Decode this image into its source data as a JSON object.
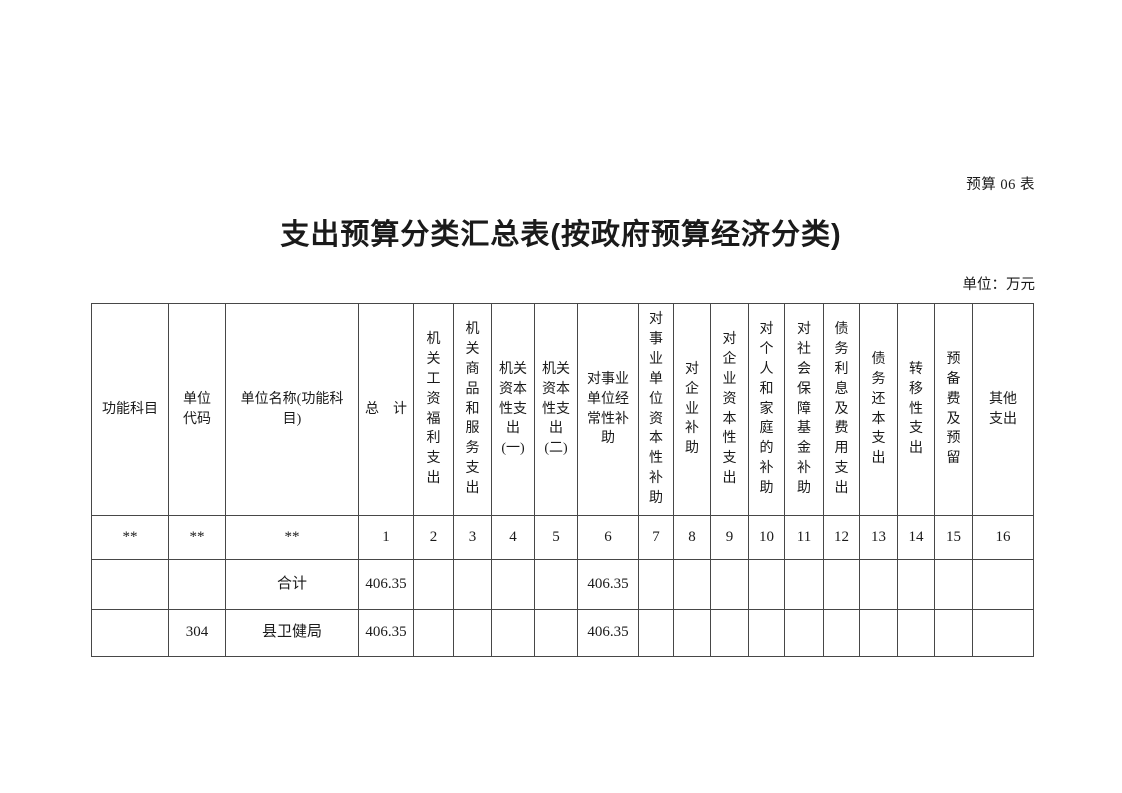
{
  "page": {
    "doc_label": "预算 06 表",
    "title": "支出预算分类汇总表(按政府预算经济分类)",
    "unit_note": "单位：万元"
  },
  "table": {
    "headers": [
      "功能科目",
      "单位\n代码",
      "单位名称(功能科\n目)",
      "总　计",
      "机\n关\n工\n资\n福\n利\n支\n出",
      "机\n关\n商\n品\n和\n服\n务\n支\n出",
      "机关\n资本\n性支\n出\n(一)",
      "机关\n资本\n性支\n出\n(二)",
      "对事业\n单位经\n常性补\n助",
      "对\n事\n业\n单\n位\n资\n本\n性\n补\n助",
      "对\n企\n业\n补\n助",
      "对\n企\n业\n资\n本\n性\n支\n出",
      "对\n个\n人\n和\n家\n庭\n的\n补\n助",
      "对\n社\n会\n保\n障\n基\n金\n补\n助",
      "债\n务\n利\n息\n及\n费\n用\n支\n出",
      "债\n务\n还\n本\n支\n出",
      "转\n移\n性\n支\n出",
      "预\n备\n费\n及\n预\n留",
      "其他\n支出"
    ],
    "number_row": [
      "**",
      "**",
      "**",
      "1",
      "2",
      "3",
      "4",
      "5",
      "6",
      "7",
      "8",
      "9",
      "10",
      "11",
      "12",
      "13",
      "14",
      "15",
      "16"
    ],
    "rows": [
      {
        "cells": [
          "",
          "",
          "合计",
          "406.35",
          "",
          "",
          "",
          "",
          "406.35",
          "",
          "",
          "",
          "",
          "",
          "",
          "",
          "",
          "",
          ""
        ]
      },
      {
        "cells": [
          "",
          "304",
          "县卫健局",
          "406.35",
          "",
          "",
          "",
          "",
          "406.35",
          "",
          "",
          "",
          "",
          "",
          "",
          "",
          "",
          "",
          ""
        ]
      }
    ]
  }
}
